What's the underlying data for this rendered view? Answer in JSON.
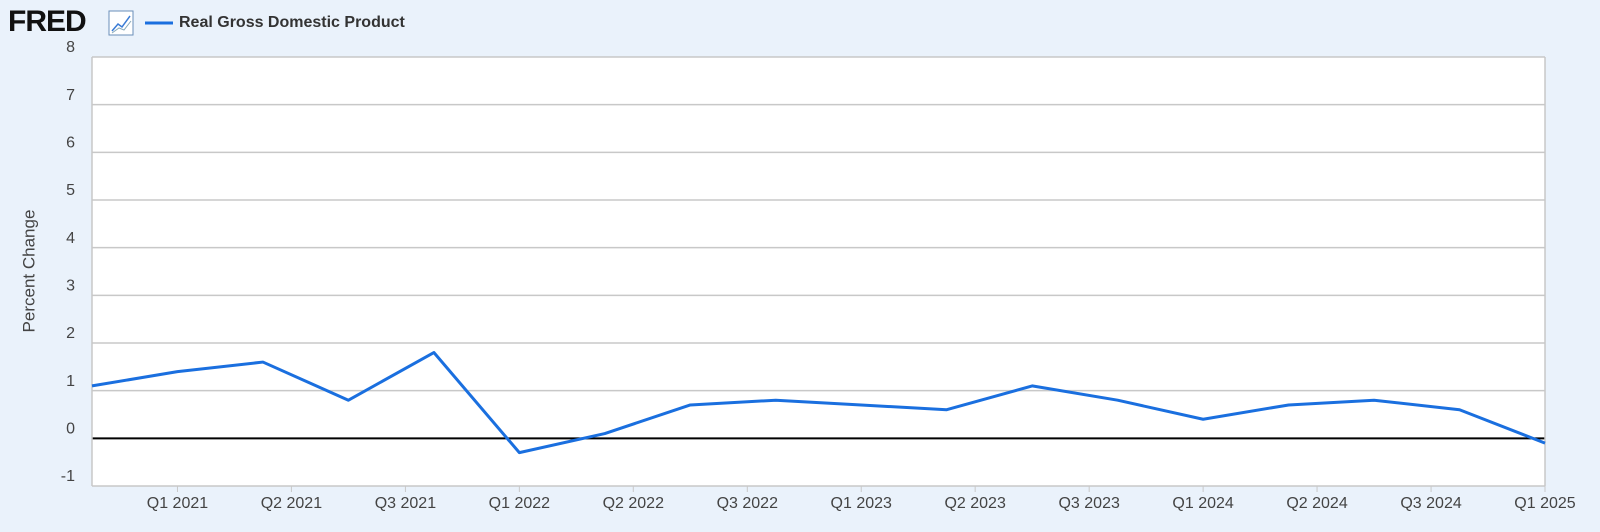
{
  "logo": "FRED",
  "chart_data": {
    "type": "line",
    "legend_position": "top-left",
    "y_label": "Percent Change",
    "x": [
      0,
      1,
      2,
      3,
      4,
      5,
      6,
      7,
      8,
      9,
      10,
      11,
      12,
      13,
      14,
      15,
      16,
      17
    ],
    "series": [
      {
        "name": "Real Gross Domestic Product",
        "color": "#1a6fdf",
        "values": [
          1.1,
          1.4,
          1.6,
          0.8,
          1.8,
          -0.3,
          0.1,
          0.7,
          0.8,
          0.7,
          0.6,
          1.1,
          0.8,
          0.4,
          0.7,
          0.8,
          0.6,
          -0.1
        ]
      }
    ],
    "xlim": [
      0,
      17
    ],
    "xticks": [
      {
        "value": 1,
        "label": "Q1 2021"
      },
      {
        "value": 2.333,
        "label": "Q2 2021"
      },
      {
        "value": 3.667,
        "label": "Q3 2021"
      },
      {
        "value": 5,
        "label": "Q1 2022"
      },
      {
        "value": 6.333,
        "label": "Q2 2022"
      },
      {
        "value": 7.667,
        "label": "Q3 2022"
      },
      {
        "value": 9,
        "label": "Q1 2023"
      },
      {
        "value": 10.333,
        "label": "Q2 2023"
      },
      {
        "value": 11.667,
        "label": "Q3 2023"
      },
      {
        "value": 13,
        "label": "Q1 2024"
      },
      {
        "value": 14.333,
        "label": "Q2 2024"
      },
      {
        "value": 15.667,
        "label": "Q3 2024"
      },
      {
        "value": 17,
        "label": "Q1 2025"
      }
    ],
    "ylim": [
      -1,
      8
    ],
    "yticks": [
      -1,
      0,
      1,
      2,
      3,
      4,
      5,
      6,
      7,
      8
    ],
    "grid": true
  }
}
